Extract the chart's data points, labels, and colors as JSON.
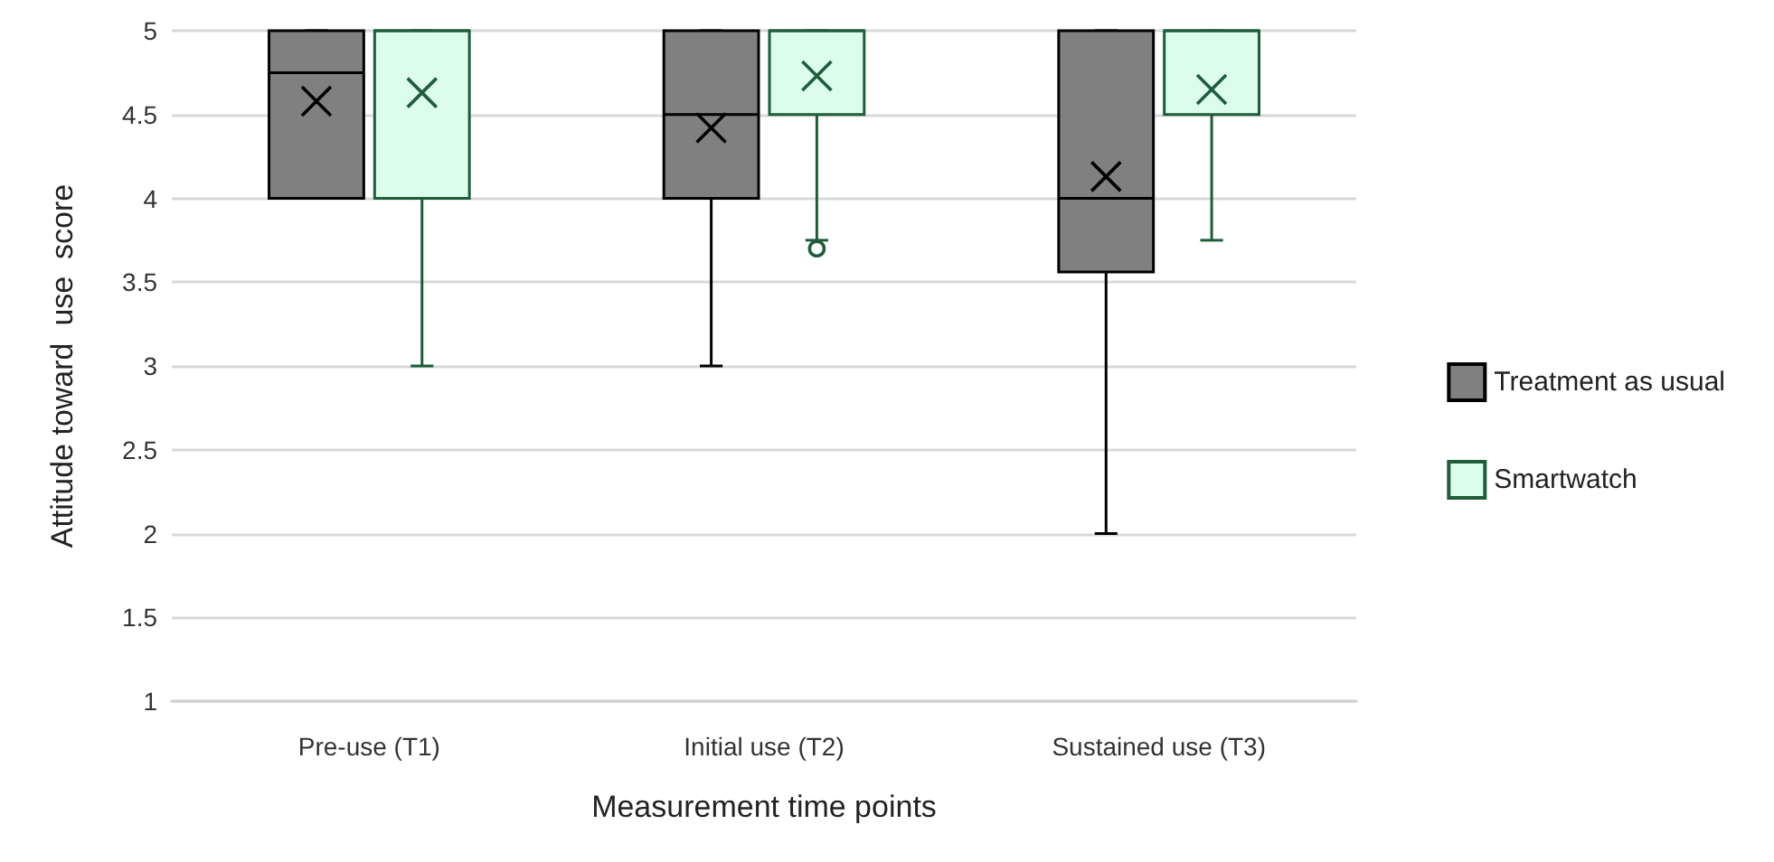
{
  "chart_data": {
    "type": "box",
    "xlabel": "Measurement time points",
    "ylabel": "Attitude toward  use  score",
    "categories": [
      "Pre-use (T1)",
      "Initial use (T2)",
      "Sustained use (T3)"
    ],
    "series": [
      {
        "name": "Treatment as usual",
        "color": "#808080",
        "boxes": [
          {
            "low": 4,
            "q1": 4,
            "median": 4.75,
            "q3": 5,
            "high": 5,
            "mean": 4.58
          },
          {
            "low": 3,
            "q1": 4,
            "median": 4.5,
            "q3": 5,
            "high": 5,
            "mean": 4.42
          },
          {
            "low": 2,
            "q1": 3.56,
            "median": 4,
            "q3": 5,
            "high": 5,
            "mean": 4.13
          }
        ]
      },
      {
        "name": "Smartwatch",
        "color": "#dcfcec",
        "boxes": [
          {
            "low": 3,
            "q1": 4,
            "median": 5,
            "q3": 5,
            "high": 5,
            "mean": 4.63
          },
          {
            "low": 3.75,
            "q1": 4.5,
            "median": 5,
            "q3": 5,
            "high": 5,
            "mean": 4.73,
            "outliers": [
              3.7
            ]
          },
          {
            "low": 3.75,
            "q1": 4.5,
            "median": 5,
            "q3": 5,
            "high": 5,
            "mean": 4.65
          }
        ]
      }
    ],
    "ylim": [
      1,
      5
    ],
    "yticks": [
      1,
      1.5,
      2,
      2.5,
      3,
      3.5,
      4,
      4.5,
      5
    ],
    "grid": "y",
    "legend": "right"
  }
}
